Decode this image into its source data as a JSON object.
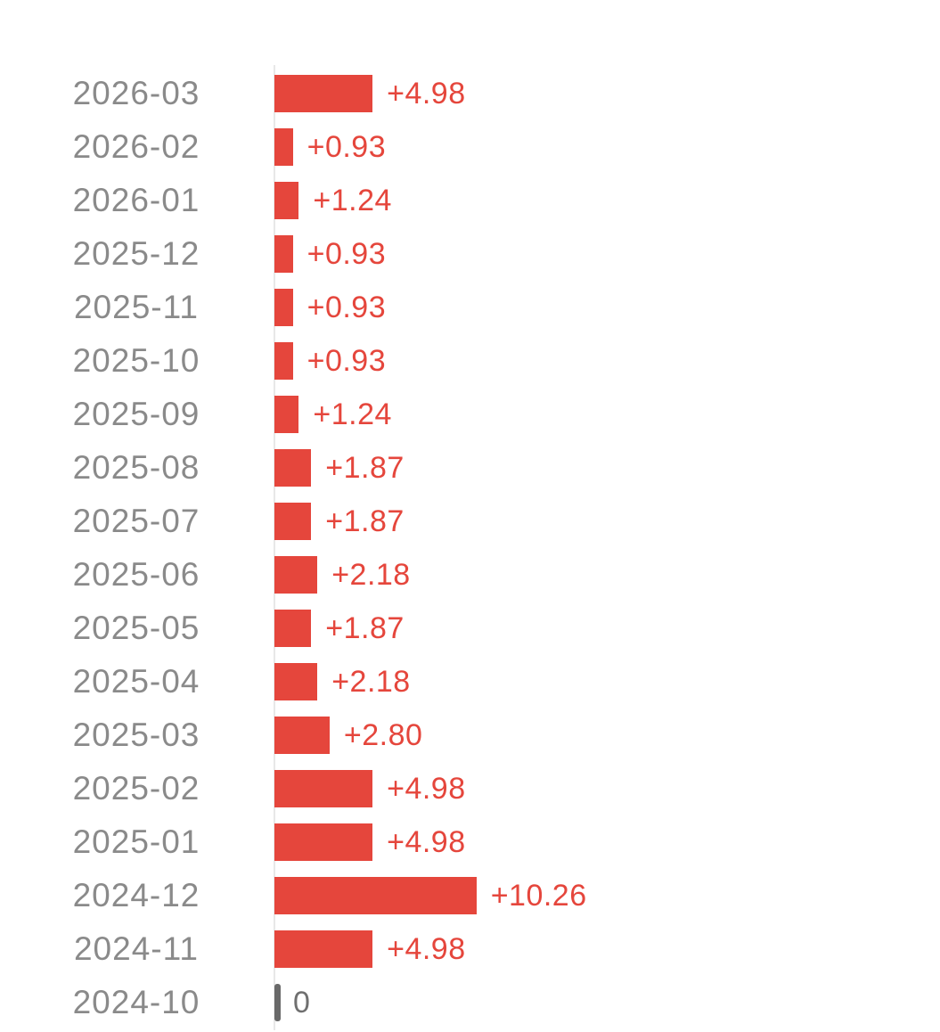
{
  "chart_data": {
    "type": "bar",
    "orientation": "horizontal",
    "categories": [
      "2026-03",
      "2026-02",
      "2026-01",
      "2025-12",
      "2025-11",
      "2025-10",
      "2025-09",
      "2025-08",
      "2025-07",
      "2025-06",
      "2025-05",
      "2025-04",
      "2025-03",
      "2025-02",
      "2025-01",
      "2024-12",
      "2024-11",
      "2024-10"
    ],
    "values": [
      4.98,
      0.93,
      1.24,
      0.93,
      0.93,
      0.93,
      1.24,
      1.87,
      1.87,
      2.18,
      1.87,
      2.18,
      2.8,
      4.98,
      4.98,
      10.26,
      4.98,
      0
    ],
    "value_labels": [
      "+4.98",
      "+0.93",
      "+1.24",
      "+0.93",
      "+0.93",
      "+0.93",
      "+1.24",
      "+1.87",
      "+1.87",
      "+2.18",
      "+1.87",
      "+2.18",
      "+2.80",
      "+4.98",
      "+4.98",
      "+10.26",
      "+4.98",
      "0"
    ],
    "xlim": [
      0,
      11.5
    ],
    "grid": false,
    "legend": false,
    "baseline": "zero-at-left",
    "category_axis_side": "left"
  },
  "colors": {
    "background": "#ffffff",
    "bar": "#e5463c",
    "value_label": "#e5463c",
    "category_label": "#8a8a8a",
    "axis_line": "#e8e8e8",
    "zero_tick": "#696969",
    "zero_label": "#6f6f6f"
  }
}
